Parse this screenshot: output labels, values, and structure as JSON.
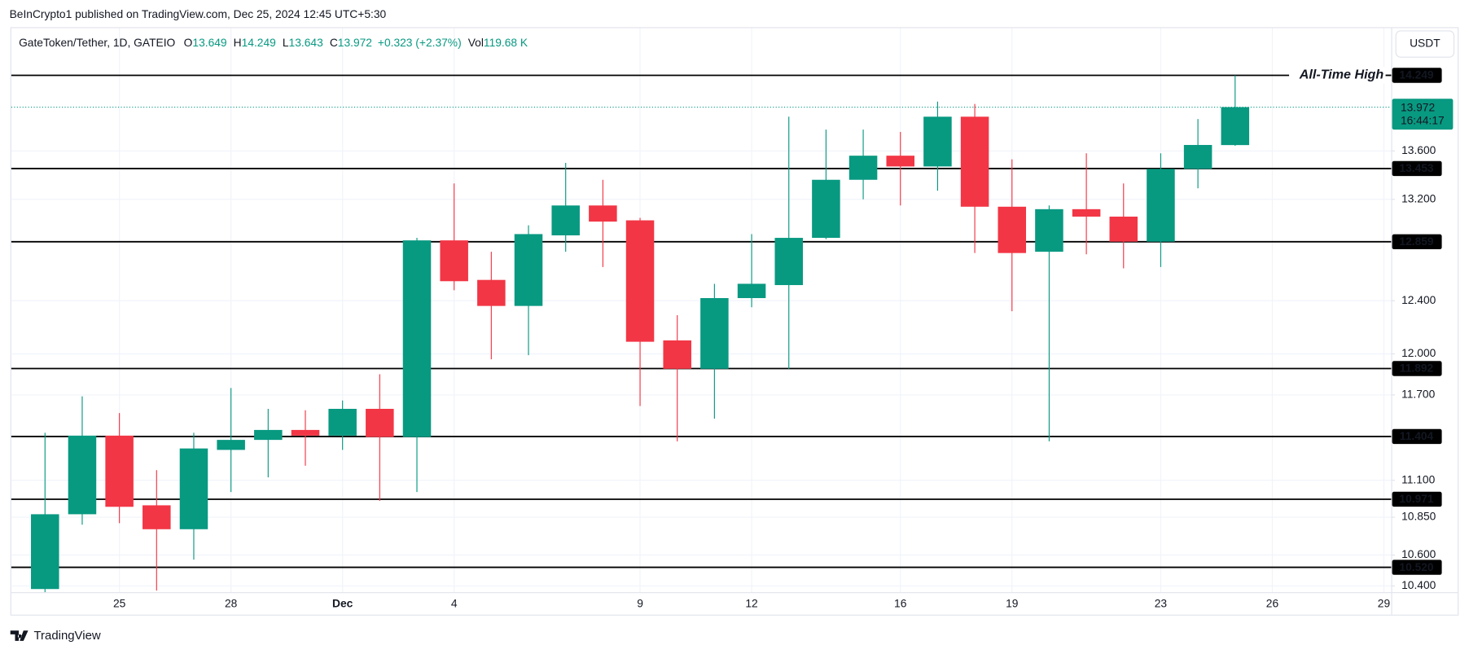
{
  "header": {
    "byline": "BeInCrypto1 published on TradingView.com, Dec 25, 2024 12:45 UTC+5:30",
    "currency": "USDT",
    "brand": "TradingView"
  },
  "chart_data": {
    "type": "candlestick",
    "title": "GateToken/Tether, 1D, GATEIO",
    "ohlc_labels": [
      "O",
      "H",
      "L",
      "C"
    ],
    "change": "+0.323 (+2.37%)",
    "volume_label": "Vol",
    "volume": "119.68 K",
    "categories": [
      null,
      null,
      "25",
      null,
      null,
      "28",
      null,
      null,
      "Dec",
      null,
      null,
      "4",
      null,
      null,
      null,
      null,
      "9",
      null,
      null,
      "12",
      null,
      null,
      null,
      "16",
      null,
      null,
      "19",
      null,
      null,
      null,
      "23",
      null,
      null,
      "26",
      null,
      null,
      "29"
    ],
    "open": [
      10.38,
      10.87,
      11.41,
      10.93,
      10.77,
      11.31,
      11.38,
      11.45,
      11.41,
      11.6,
      11.4,
      12.87,
      12.56,
      12.36,
      12.91,
      13.15,
      13.03,
      12.1,
      11.89,
      12.42,
      12.52,
      12.89,
      13.36,
      13.56,
      13.47,
      13.89,
      13.14,
      12.78,
      13.12,
      13.06,
      12.86,
      13.45,
      13.649,
      null,
      null,
      null,
      null
    ],
    "high": [
      11.43,
      11.69,
      11.57,
      11.17,
      11.43,
      11.75,
      11.6,
      11.59,
      11.66,
      11.85,
      12.89,
      13.33,
      12.78,
      12.99,
      13.5,
      13.36,
      13.05,
      12.29,
      12.53,
      12.92,
      13.89,
      13.78,
      13.78,
      13.76,
      14.02,
      14.0,
      13.53,
      13.15,
      13.58,
      13.33,
      13.58,
      13.87,
      14.249,
      null,
      null,
      null,
      null
    ],
    "low": [
      10.35,
      10.8,
      10.81,
      10.37,
      10.57,
      11.02,
      11.12,
      11.2,
      11.31,
      10.96,
      11.02,
      12.48,
      11.96,
      11.99,
      12.78,
      12.66,
      11.62,
      11.37,
      11.53,
      12.35,
      11.89,
      12.88,
      13.2,
      13.15,
      13.27,
      12.77,
      12.32,
      11.37,
      12.76,
      12.65,
      12.66,
      13.29,
      13.643,
      null,
      null,
      null,
      null
    ],
    "close": [
      10.87,
      11.41,
      10.92,
      10.77,
      11.32,
      11.38,
      11.45,
      11.41,
      11.6,
      11.4,
      12.87,
      12.55,
      12.36,
      12.92,
      13.15,
      13.02,
      12.09,
      11.89,
      12.42,
      12.53,
      12.89,
      13.36,
      13.56,
      13.47,
      13.89,
      13.14,
      12.77,
      13.12,
      13.06,
      12.86,
      13.45,
      13.65,
      13.972,
      null,
      null,
      null,
      null
    ],
    "up_color": "#089981",
    "down_color": "#f23645",
    "log_scale": true,
    "ylim": [
      10.36,
      14.67
    ],
    "yticks": [
      {
        "value": 13.6,
        "label": "13.600"
      },
      {
        "value": 13.2,
        "label": "13.200"
      },
      {
        "value": 12.4,
        "label": "12.400"
      },
      {
        "value": 12.0,
        "label": "12.000"
      },
      {
        "value": 11.7,
        "label": "11.700"
      },
      {
        "value": 11.1,
        "label": "11.100"
      },
      {
        "value": 10.85,
        "label": "10.850"
      },
      {
        "value": 10.6,
        "label": "10.600"
      },
      {
        "value": 10.4,
        "label": "10.400"
      }
    ],
    "grid": true,
    "levels": [
      14.249,
      13.453,
      12.859,
      11.892,
      11.404,
      10.971,
      {
        "value": 10.52,
        "label": "10.520"
      }
    ],
    "level_color": "#000000",
    "annotation": "All-Time High",
    "last_price_countdown": "16:44:17"
  }
}
